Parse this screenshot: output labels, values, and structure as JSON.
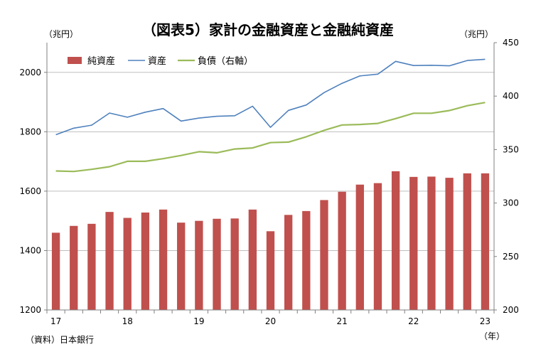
{
  "chart_data": {
    "type": "bar+line",
    "title": "（図表5）家計の金融資産と金融純資産",
    "left_unit": "（兆円）",
    "right_unit": "（兆円）",
    "x_unit": "（年）",
    "source": "（資料）日本銀行",
    "legend_position": "top-left",
    "grid": true,
    "x": [
      "17Q1",
      "17Q2",
      "17Q3",
      "17Q4",
      "18Q1",
      "18Q2",
      "18Q3",
      "18Q4",
      "19Q1",
      "19Q2",
      "19Q3",
      "19Q4",
      "20Q1",
      "20Q2",
      "20Q3",
      "20Q4",
      "21Q1",
      "21Q2",
      "21Q3",
      "21Q4",
      "22Q1",
      "22Q2",
      "22Q3",
      "22Q4",
      "23Q1"
    ],
    "x_tick_labels": [
      {
        "index": 0,
        "label": "17"
      },
      {
        "index": 4,
        "label": "18"
      },
      {
        "index": 8,
        "label": "19"
      },
      {
        "index": 12,
        "label": "20"
      },
      {
        "index": 16,
        "label": "21"
      },
      {
        "index": 20,
        "label": "22"
      },
      {
        "index": 24,
        "label": "23"
      }
    ],
    "left_axis": {
      "min": 1200,
      "max": 2100,
      "ticks": [
        1200,
        1400,
        1600,
        1800,
        2000
      ]
    },
    "right_axis": {
      "min": 200,
      "max": 450,
      "ticks": [
        200,
        250,
        300,
        350,
        400,
        450
      ]
    },
    "series": [
      {
        "name": "純資産",
        "type": "bar",
        "axis": "left",
        "color": "#c0504d",
        "values": [
          1460,
          1483,
          1490,
          1530,
          1510,
          1528,
          1538,
          1494,
          1500,
          1507,
          1508,
          1538,
          1465,
          1520,
          1533,
          1570,
          1598,
          1622,
          1627,
          1667,
          1648,
          1649,
          1645,
          1660,
          1660
        ]
      },
      {
        "name": "資産",
        "type": "line",
        "axis": "left",
        "color": "#4f81bd",
        "values": [
          1790,
          1812,
          1822,
          1863,
          1849,
          1866,
          1878,
          1836,
          1846,
          1852,
          1854,
          1886,
          1815,
          1872,
          1890,
          1932,
          1963,
          1988,
          1994,
          2037,
          2023,
          2024,
          2022,
          2040,
          2044
        ]
      },
      {
        "name": "負債（右軸）",
        "type": "line",
        "axis": "right",
        "color": "#9bbb59",
        "values": [
          330,
          329.5,
          331.5,
          334,
          339,
          339,
          341.5,
          344.5,
          348,
          347,
          350.5,
          351.5,
          356.5,
          357,
          362,
          368,
          373,
          373.5,
          374.5,
          379,
          384,
          384,
          386.5,
          391,
          394
        ]
      }
    ]
  }
}
